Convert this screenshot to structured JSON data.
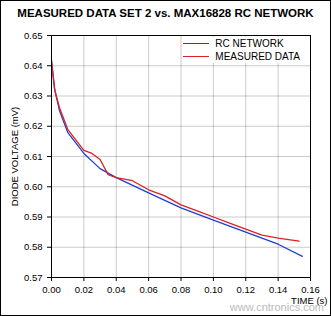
{
  "chart_data": {
    "type": "line",
    "title": "MEASURED DATA SET 2 vs. MAX16828 RC NETWORK",
    "x_label": "TIME (s)",
    "y_label": "DIODE VOLTAGE (mV)",
    "xlim": [
      0,
      0.16
    ],
    "xticks": [
      {
        "value": 0,
        "label": "0.00"
      },
      0.02,
      0.04,
      0.06,
      0.08,
      {
        "value": 0.1,
        "label": "0.10"
      },
      0.12,
      0.14,
      0.16
    ],
    "ylim": [
      0.57,
      0.65
    ],
    "yticks": [
      0.57,
      0.58,
      0.59,
      {
        "value": 0.6,
        "label": "0.60"
      },
      0.61,
      0.62,
      0.63,
      0.64,
      0.65
    ],
    "grid": true,
    "legend": "top-right",
    "series": [
      {
        "name": "RC NETWORK",
        "color": "#1f3fd0",
        "x": [
          0,
          0.002,
          0.005,
          0.01,
          0.02,
          0.03,
          0.04,
          0.06,
          0.08,
          0.1,
          0.12,
          0.14,
          0.155
        ],
        "values": [
          0.642,
          0.632,
          0.625,
          0.618,
          0.611,
          0.606,
          0.603,
          0.598,
          0.593,
          0.589,
          0.585,
          0.581,
          0.577
        ]
      },
      {
        "name": "MEASURED DATA",
        "color": "#e0201f",
        "x": [
          0,
          0.002,
          0.005,
          0.01,
          0.02,
          0.025,
          0.03,
          0.035,
          0.04,
          0.05,
          0.06,
          0.07,
          0.08,
          0.09,
          0.1,
          0.11,
          0.12,
          0.13,
          0.14,
          0.153
        ],
        "values": [
          0.641,
          0.632,
          0.626,
          0.619,
          0.612,
          0.611,
          0.609,
          0.604,
          0.603,
          0.602,
          0.599,
          0.597,
          0.594,
          0.592,
          0.59,
          0.588,
          0.586,
          0.584,
          0.583,
          0.582
        ]
      }
    ],
    "annotations": [
      "www.cntronics.com"
    ]
  }
}
